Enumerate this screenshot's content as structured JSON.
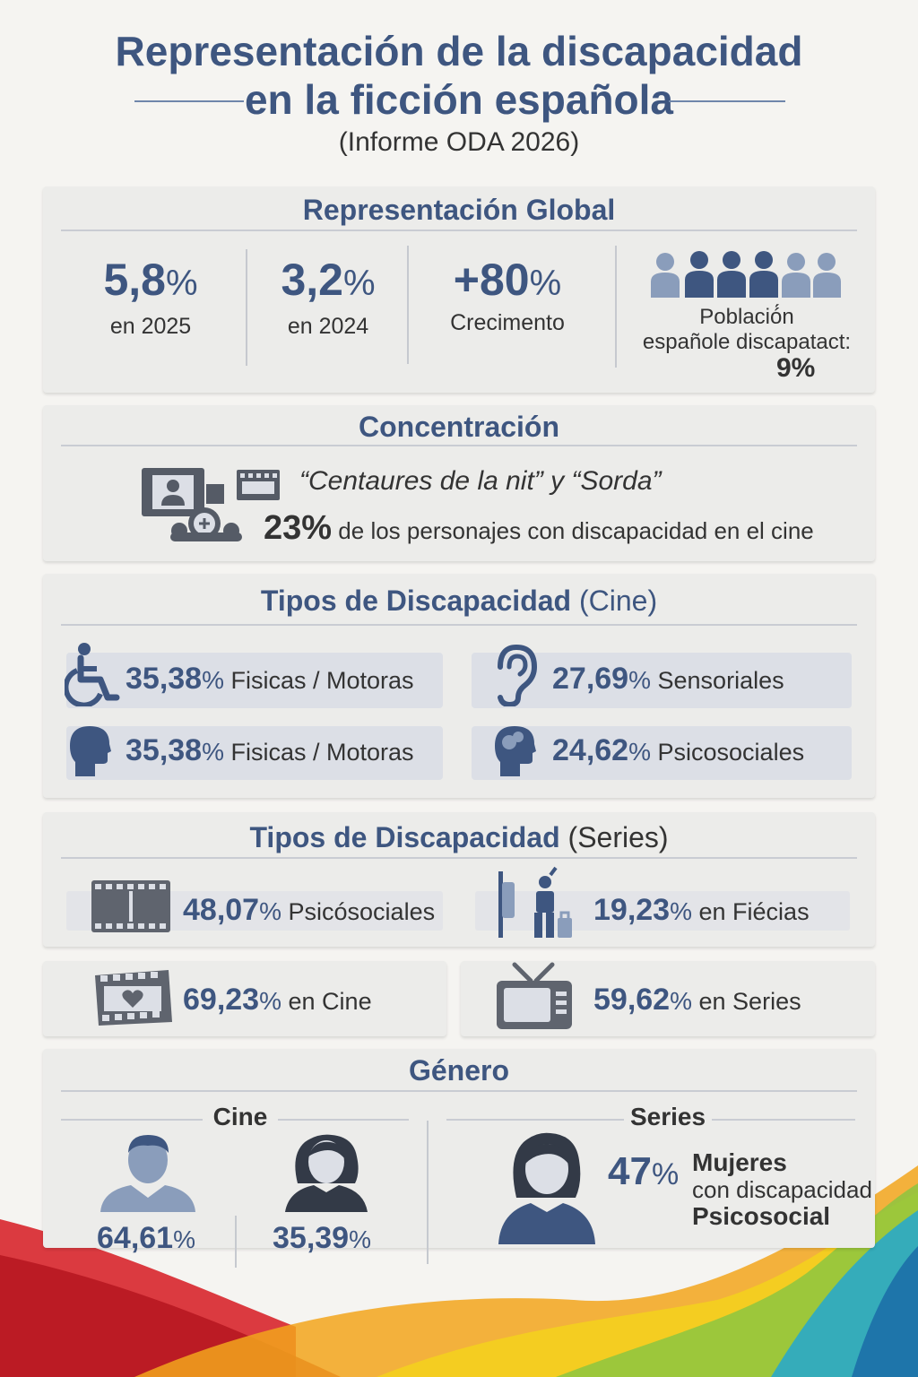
{
  "header": {
    "title_line1": "Representación de la discapacidad",
    "title_line2": "en la ficción española",
    "subtitle": "(Informe ODA 2026)"
  },
  "global": {
    "title": "Representación Global",
    "stats": [
      {
        "value": "5,8",
        "unit": "%",
        "label": "en 2025"
      },
      {
        "value": "3,2",
        "unit": "%",
        "label": "en 2024"
      },
      {
        "value": "+80",
        "unit": "%",
        "label": "Crecimento"
      }
    ],
    "population_line1": "Població́n",
    "population_line2": "españole discapatact:",
    "population_value": "9%"
  },
  "concentration": {
    "title": "Concentración",
    "films": "“Centaures de la nit”  y  “Sorda”",
    "value": "23%",
    "text": "de los personajes con discapacidad en el  cine"
  },
  "cine_types": {
    "title_bold": "Tipos de Discapacidad",
    "title_light": "(Cine)",
    "items": [
      {
        "icon": "wheelchair-icon",
        "value": "35,38",
        "unit": "%",
        "label": "Fisicas / Motoras"
      },
      {
        "icon": "ear-icon",
        "value": "27,69",
        "unit": "%",
        "label": "Sensoriales"
      },
      {
        "icon": "head-profile-icon",
        "value": "35,38",
        "unit": "%",
        "label": "Fisicas / Motoras"
      },
      {
        "icon": "mind-profile-icon",
        "value": "24,62",
        "unit": "%",
        "label": "Psicosociales"
      }
    ]
  },
  "series_types": {
    "title_bold": "Tipos de Discapacidad",
    "title_light": "(Series)",
    "items": [
      {
        "icon": "film-strip-icon",
        "value": "48,07",
        "unit": "%",
        "label": "Psicósociales"
      },
      {
        "icon": "mobility-person-icon",
        "value": "19,23",
        "unit": "%",
        "label": "en Fiécias"
      }
    ]
  },
  "platforms": [
    {
      "icon": "film-heart-icon",
      "value": "69,23",
      "unit": "%",
      "label": "en Cine"
    },
    {
      "icon": "television-icon",
      "value": "59,62",
      "unit": "%",
      "label": "en Series"
    }
  ],
  "gender": {
    "title": "Género",
    "cine_label": "Cine",
    "series_label": "Series",
    "cine_male": "64,61",
    "cine_female": "35,39",
    "unit": "%",
    "series_value": "47",
    "series_line1": "Mujeres",
    "series_line2": "con discapacidad",
    "series_line3": "Psicosocial"
  },
  "colors": {
    "accent": "#3e5680",
    "icon_dark": "#3e5680",
    "icon_light": "#8a9dbb",
    "card": "#ececea"
  }
}
